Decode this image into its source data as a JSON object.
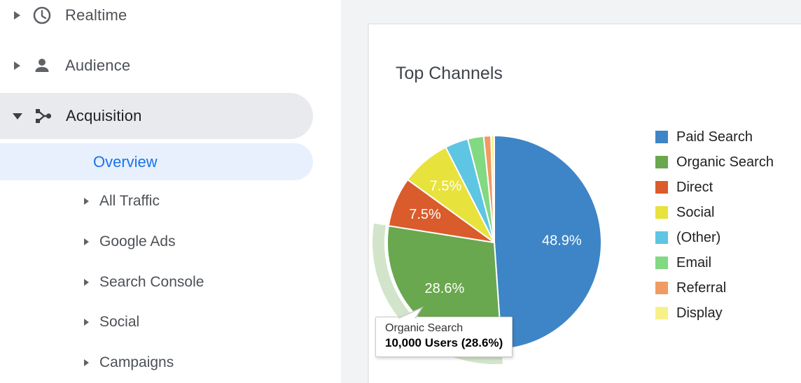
{
  "sidebar": {
    "items": [
      {
        "label": "Realtime",
        "icon": "clock-icon",
        "expanded": false,
        "active": false
      },
      {
        "label": "Audience",
        "icon": "person-icon",
        "expanded": false,
        "active": false
      },
      {
        "label": "Acquisition",
        "icon": "acquisition-icon",
        "expanded": true,
        "active": true
      }
    ],
    "sub_items": [
      {
        "label": "Overview",
        "selected": true,
        "has_arrow": false
      },
      {
        "label": "All Traffic",
        "selected": false,
        "has_arrow": true
      },
      {
        "label": "Google Ads",
        "selected": false,
        "has_arrow": true
      },
      {
        "label": "Search Console",
        "selected": false,
        "has_arrow": true
      },
      {
        "label": "Social",
        "selected": false,
        "has_arrow": true
      },
      {
        "label": "Campaigns",
        "selected": false,
        "has_arrow": true
      }
    ]
  },
  "card": {
    "title": "Top Channels"
  },
  "tooltip": {
    "title": "Organic Search",
    "value": "10,000 Users (28.6%)"
  },
  "colors": {
    "selected_nav_text": "#1a73e8",
    "selected_nav_bg": "#e8f0fe",
    "active_pill_bg": "#e8eaed",
    "main_bg": "#f1f3f4",
    "highlight_halo": "rgba(106,168,78,0.3)"
  },
  "chart_data": {
    "type": "pie",
    "title": "Top Channels",
    "legend_position": "right",
    "start_angle_deg": 0,
    "direction": "clockwise",
    "labels": [
      "Paid Search",
      "Organic Search",
      "Direct",
      "Social",
      "(Other)",
      "Email",
      "Referral",
      "Display"
    ],
    "values_percent": [
      48.9,
      28.6,
      7.5,
      7.5,
      3.5,
      2.4,
      1.1,
      0.5
    ],
    "colors": [
      "#3d85c6",
      "#69a84e",
      "#da5b2b",
      "#e8e23c",
      "#5ec5e3",
      "#81d981",
      "#f09b61",
      "#f7f18a"
    ],
    "slice_label_min_percent": 5,
    "slice_labels_shown": [
      "48.9%",
      "28.6%",
      "7.5%",
      "7.5%"
    ],
    "highlighted_slice": "Organic Search",
    "highlighted_tooltip": {
      "channel": "Organic Search",
      "users": "10,000",
      "percent": "28.6%"
    }
  }
}
